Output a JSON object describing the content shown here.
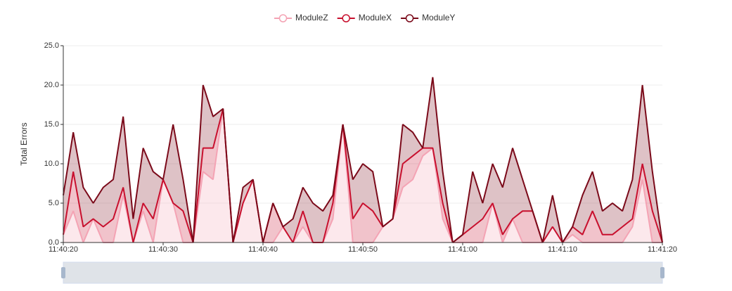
{
  "chart_data": {
    "type": "stacked-area",
    "y_label": "Total Errors",
    "x": [
      "11:40:20",
      "11:40:21",
      "11:40:22",
      "11:40:23",
      "11:40:24",
      "11:40:25",
      "11:40:26",
      "11:40:27",
      "11:40:28",
      "11:40:29",
      "11:40:30",
      "11:40:31",
      "11:40:32",
      "11:40:33",
      "11:40:34",
      "11:40:35",
      "11:40:36",
      "11:40:37",
      "11:40:38",
      "11:40:39",
      "11:40:40",
      "11:40:41",
      "11:40:42",
      "11:40:43",
      "11:40:44",
      "11:40:45",
      "11:40:46",
      "11:40:47",
      "11:40:48",
      "11:40:49",
      "11:40:50",
      "11:40:51",
      "11:40:52",
      "11:40:53",
      "11:40:54",
      "11:40:55",
      "11:40:56",
      "11:40:57",
      "11:40:58",
      "11:40:59",
      "11:41:00",
      "11:41:01",
      "11:41:02",
      "11:41:03",
      "11:41:04",
      "11:41:05",
      "11:41:06",
      "11:41:07",
      "11:41:08",
      "11:41:09",
      "11:41:10",
      "11:41:11",
      "11:41:12",
      "11:41:13",
      "11:41:14",
      "11:41:15",
      "11:41:16",
      "11:41:17",
      "11:41:18",
      "11:41:19",
      "11:41:20"
    ],
    "xticks": [
      "11:40:20",
      "11:40:30",
      "11:40:40",
      "11:40:50",
      "11:41:00",
      "11:41:10",
      "11:41:20"
    ],
    "ylim": [
      0,
      25
    ],
    "yticks": [
      {
        "value": 0,
        "label": "0.0"
      },
      {
        "value": 5,
        "label": "5.0"
      },
      {
        "value": 10,
        "label": "10.0"
      },
      {
        "value": 15,
        "label": "15.0"
      },
      {
        "value": 20,
        "label": "20.0"
      },
      {
        "value": 25,
        "label": "25.0"
      }
    ],
    "grid": true,
    "legend": "top",
    "series": [
      {
        "name": "ModuleZ",
        "color": "#f4a3b4",
        "values": [
          1,
          4,
          0,
          3,
          0,
          0,
          6,
          0,
          4,
          0,
          8,
          5,
          0,
          0,
          9,
          8,
          17,
          0,
          5,
          8,
          0,
          0,
          2,
          0,
          2,
          0,
          0,
          3,
          15,
          0,
          0,
          0,
          2,
          3,
          7,
          8,
          11,
          12,
          3,
          0,
          0,
          0,
          0,
          5,
          0,
          3,
          0,
          0,
          0,
          2,
          0,
          1,
          0,
          0,
          0,
          0,
          0,
          2,
          8,
          0,
          0
        ]
      },
      {
        "name": "ModuleX",
        "color": "#c8102e",
        "values": [
          0,
          5,
          2,
          0,
          2,
          3,
          1,
          0,
          1,
          3,
          0,
          0,
          4,
          0,
          3,
          4,
          0,
          0,
          0,
          0,
          0,
          5,
          0,
          0,
          2,
          0,
          0,
          2,
          0,
          3,
          5,
          4,
          0,
          0,
          3,
          3,
          1,
          0,
          2,
          0,
          1,
          2,
          3,
          0,
          1,
          0,
          4,
          4,
          0,
          0,
          0,
          1,
          1,
          4,
          1,
          1,
          2,
          1,
          2,
          4,
          0
        ]
      },
      {
        "name": "ModuleY",
        "color": "#7b0a1a",
        "values": [
          5,
          5,
          5,
          2,
          5,
          5,
          9,
          3,
          7,
          6,
          0,
          10,
          4,
          0,
          8,
          4,
          0,
          0,
          2,
          0,
          0,
          0,
          0,
          3,
          3,
          5,
          4,
          1,
          0,
          5,
          5,
          5,
          0,
          0,
          5,
          3,
          0,
          9,
          4,
          0,
          0,
          7,
          2,
          5,
          6,
          9,
          4,
          0,
          0,
          4,
          0,
          0,
          5,
          5,
          3,
          4,
          2,
          5,
          10,
          5,
          0
        ]
      }
    ]
  }
}
